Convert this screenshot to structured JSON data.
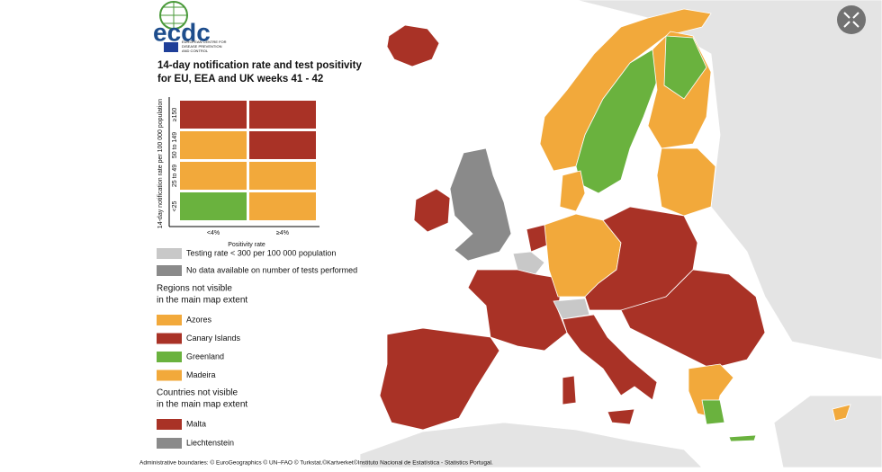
{
  "logo": {
    "name": "ecdc",
    "subtitle": [
      "EUROPEAN CENTRE FOR",
      "DISEASE PREVENTION",
      "AND CONTROL"
    ]
  },
  "title": [
    "14-day notification rate and test positivity",
    "for EU, EEA and UK weeks 41 - 42"
  ],
  "matrix": {
    "y_label": "14-day notification rate per 100 000 population",
    "x_label": "Positivity rate",
    "columns": [
      "<4%",
      "≥4%"
    ],
    "rows": [
      {
        "label": "≥150",
        "cells": [
          "#a93226",
          "#a93226"
        ]
      },
      {
        "label": "50 to 149",
        "cells": [
          "#f2a93b",
          "#a93226"
        ]
      },
      {
        "label": "25 to 49",
        "cells": [
          "#f2a93b",
          "#f2a93b"
        ]
      },
      {
        "label": "<25",
        "cells": [
          "#6ab23e",
          "#f2a93b"
        ]
      }
    ]
  },
  "legend": [
    {
      "label": "Testing rate < 300 per 100 000 population",
      "color": "#c8c8c8"
    },
    {
      "label": "No data available on number of tests performed",
      "color": "#8a8a8a"
    }
  ],
  "regions": {
    "heading": [
      "Regions not visible",
      "in the main map extent"
    ],
    "items": [
      {
        "label": "Azores",
        "color": "#f2a93b"
      },
      {
        "label": "Canary Islands",
        "color": "#a93226"
      },
      {
        "label": "Greenland",
        "color": "#6ab23e"
      },
      {
        "label": "Madeira",
        "color": "#f2a93b"
      }
    ]
  },
  "countries": {
    "heading": [
      "Countries not visible",
      "in the main map extent"
    ],
    "items": [
      {
        "label": "Malta",
        "color": "#a93226"
      },
      {
        "label": "Liechtenstein",
        "color": "#8a8a8a"
      }
    ]
  },
  "footer": "Administrative boundaries: © EuroGeographics © UN–FAO © Turkstat.©Kartverket©Instituto Nacional de Estatística - Statistics Portugal."
}
